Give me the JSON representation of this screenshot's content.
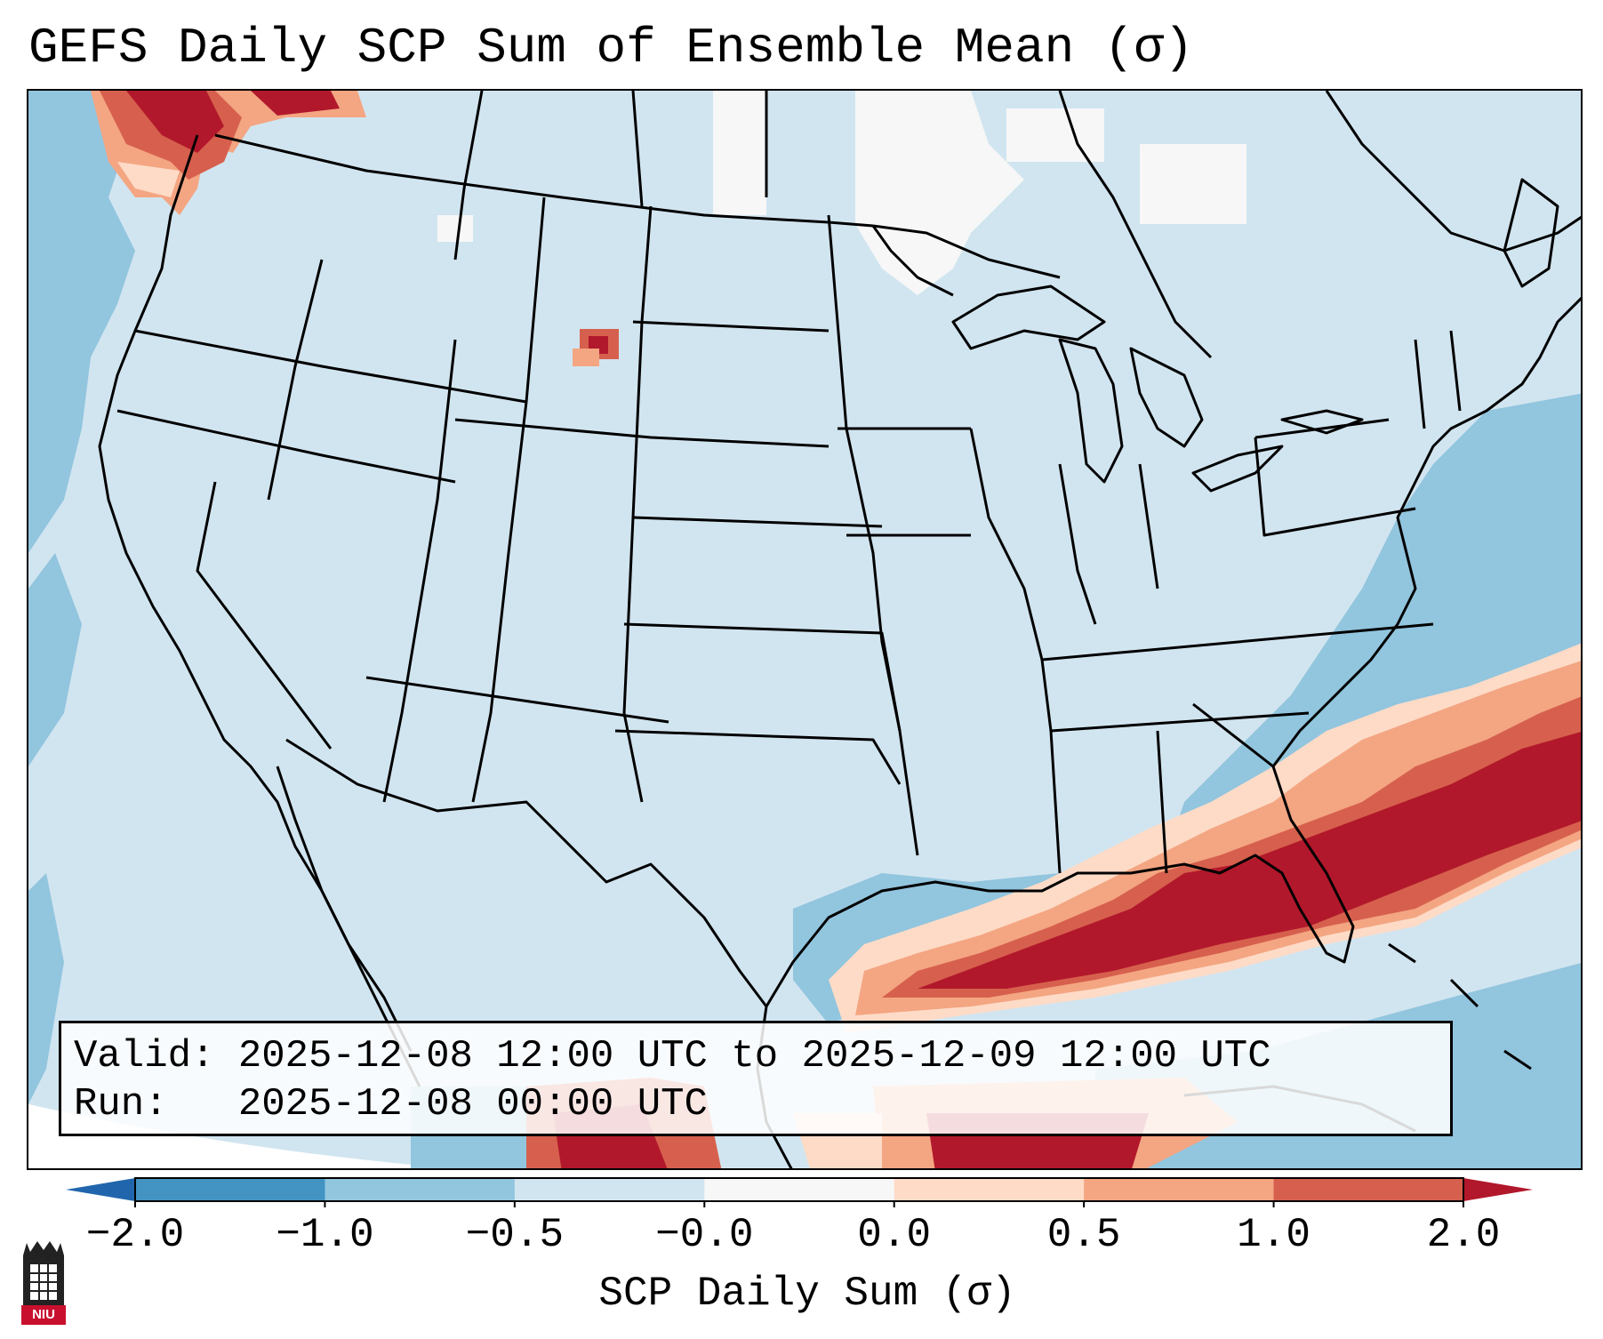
{
  "title": "GEFS Daily SCP Sum of Ensemble Mean (σ)",
  "info": {
    "valid_line": "Valid: 2025-12-08 12:00 UTC to 2025-12-09 12:00 UTC",
    "run_line": "Run:   2025-12-08 00:00 UTC"
  },
  "colorbar": {
    "label": "SCP Daily Sum (σ)",
    "ticks": [
      "−2.0",
      "−1.0",
      "−0.5",
      "−0.0",
      "0.0",
      "0.5",
      "1.0",
      "2.0"
    ],
    "colors": [
      "#4393c3",
      "#92c5de",
      "#d1e5f0",
      "#f7f7f7",
      "#fddbc7",
      "#f4a582",
      "#d6604d",
      "#b2182b"
    ],
    "under_color": "#2166ac",
    "over_color": "#b2182b"
  },
  "map": {
    "background_color": "#d1e5f0",
    "hotspots": [
      {
        "name": "pacific-northwest",
        "level": "high"
      },
      {
        "name": "northeast-wyoming",
        "level": "high"
      },
      {
        "name": "gulf-florida-atlantic",
        "level": "very-high"
      },
      {
        "name": "western-caribbean",
        "level": "very-high"
      }
    ]
  },
  "logo": {
    "text": "NIU"
  }
}
